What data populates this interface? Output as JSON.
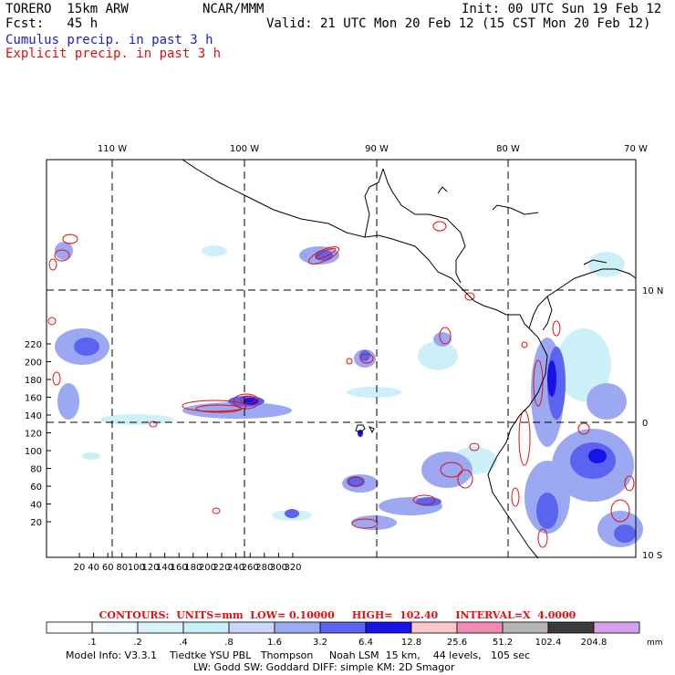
{
  "header": {
    "model": "TORERO  15km ARW",
    "org": "NCAR/MMM",
    "init": "Init: 00 UTC Sun 19 Feb 12",
    "fcst": "Fcst:   45 h",
    "valid": "Valid: 21 UTC Mon 20 Feb 12 (15 CST Mon 20 Feb 12)",
    "legend_cumulus": "Cumulus precip. in past 3 h",
    "legend_explicit": "Explicit precip. in past 3 h"
  },
  "map": {
    "x_grid_labels": [
      "20",
      "40",
      "60",
      "80",
      "100",
      "120",
      "140",
      "160",
      "180",
      "200",
      "220",
      "240",
      "260",
      "280",
      "300",
      "320"
    ],
    "y_grid_labels": [
      "20",
      "40",
      "60",
      "80",
      "100",
      "120",
      "140",
      "160",
      "180",
      "200",
      "220"
    ],
    "lon_labels": [
      "110 W",
      "100 W",
      "90 W",
      "80 W",
      "70 W"
    ],
    "lat_labels": [
      "10 N",
      "0",
      "10 S"
    ]
  },
  "contour_info": "CONTOURS:  UNITS=mm  LOW= 0.10000     HIGH=  102.40     INTERVAL=X  4.0000",
  "colorbar": {
    "labels": [
      ".1",
      ".2",
      ".4",
      ".8",
      "1.6",
      "3.2",
      "6.4",
      "12.8",
      "25.6",
      "51.2",
      "102.4",
      "204.8"
    ],
    "unit": "mm",
    "colors": [
      "#ffffff",
      "#f2faff",
      "#dcf2fa",
      "#c8eef8",
      "#c8d6f8",
      "#9ca8f2",
      "#5a64f0",
      "#1a10e8",
      "#fac8c8",
      "#f08cb4",
      "#b4b4b4",
      "#3c3c3c",
      "#d7a0f0"
    ]
  },
  "footer": {
    "line1": "Model Info: V3.3.1    Tiedtke YSU PBL   Thompson     Noah LSM  15 km,    44 levels,   105 sec",
    "line2": "LW: Godd SW: Goddard DIFF: simple KM: 2D Smagor"
  }
}
